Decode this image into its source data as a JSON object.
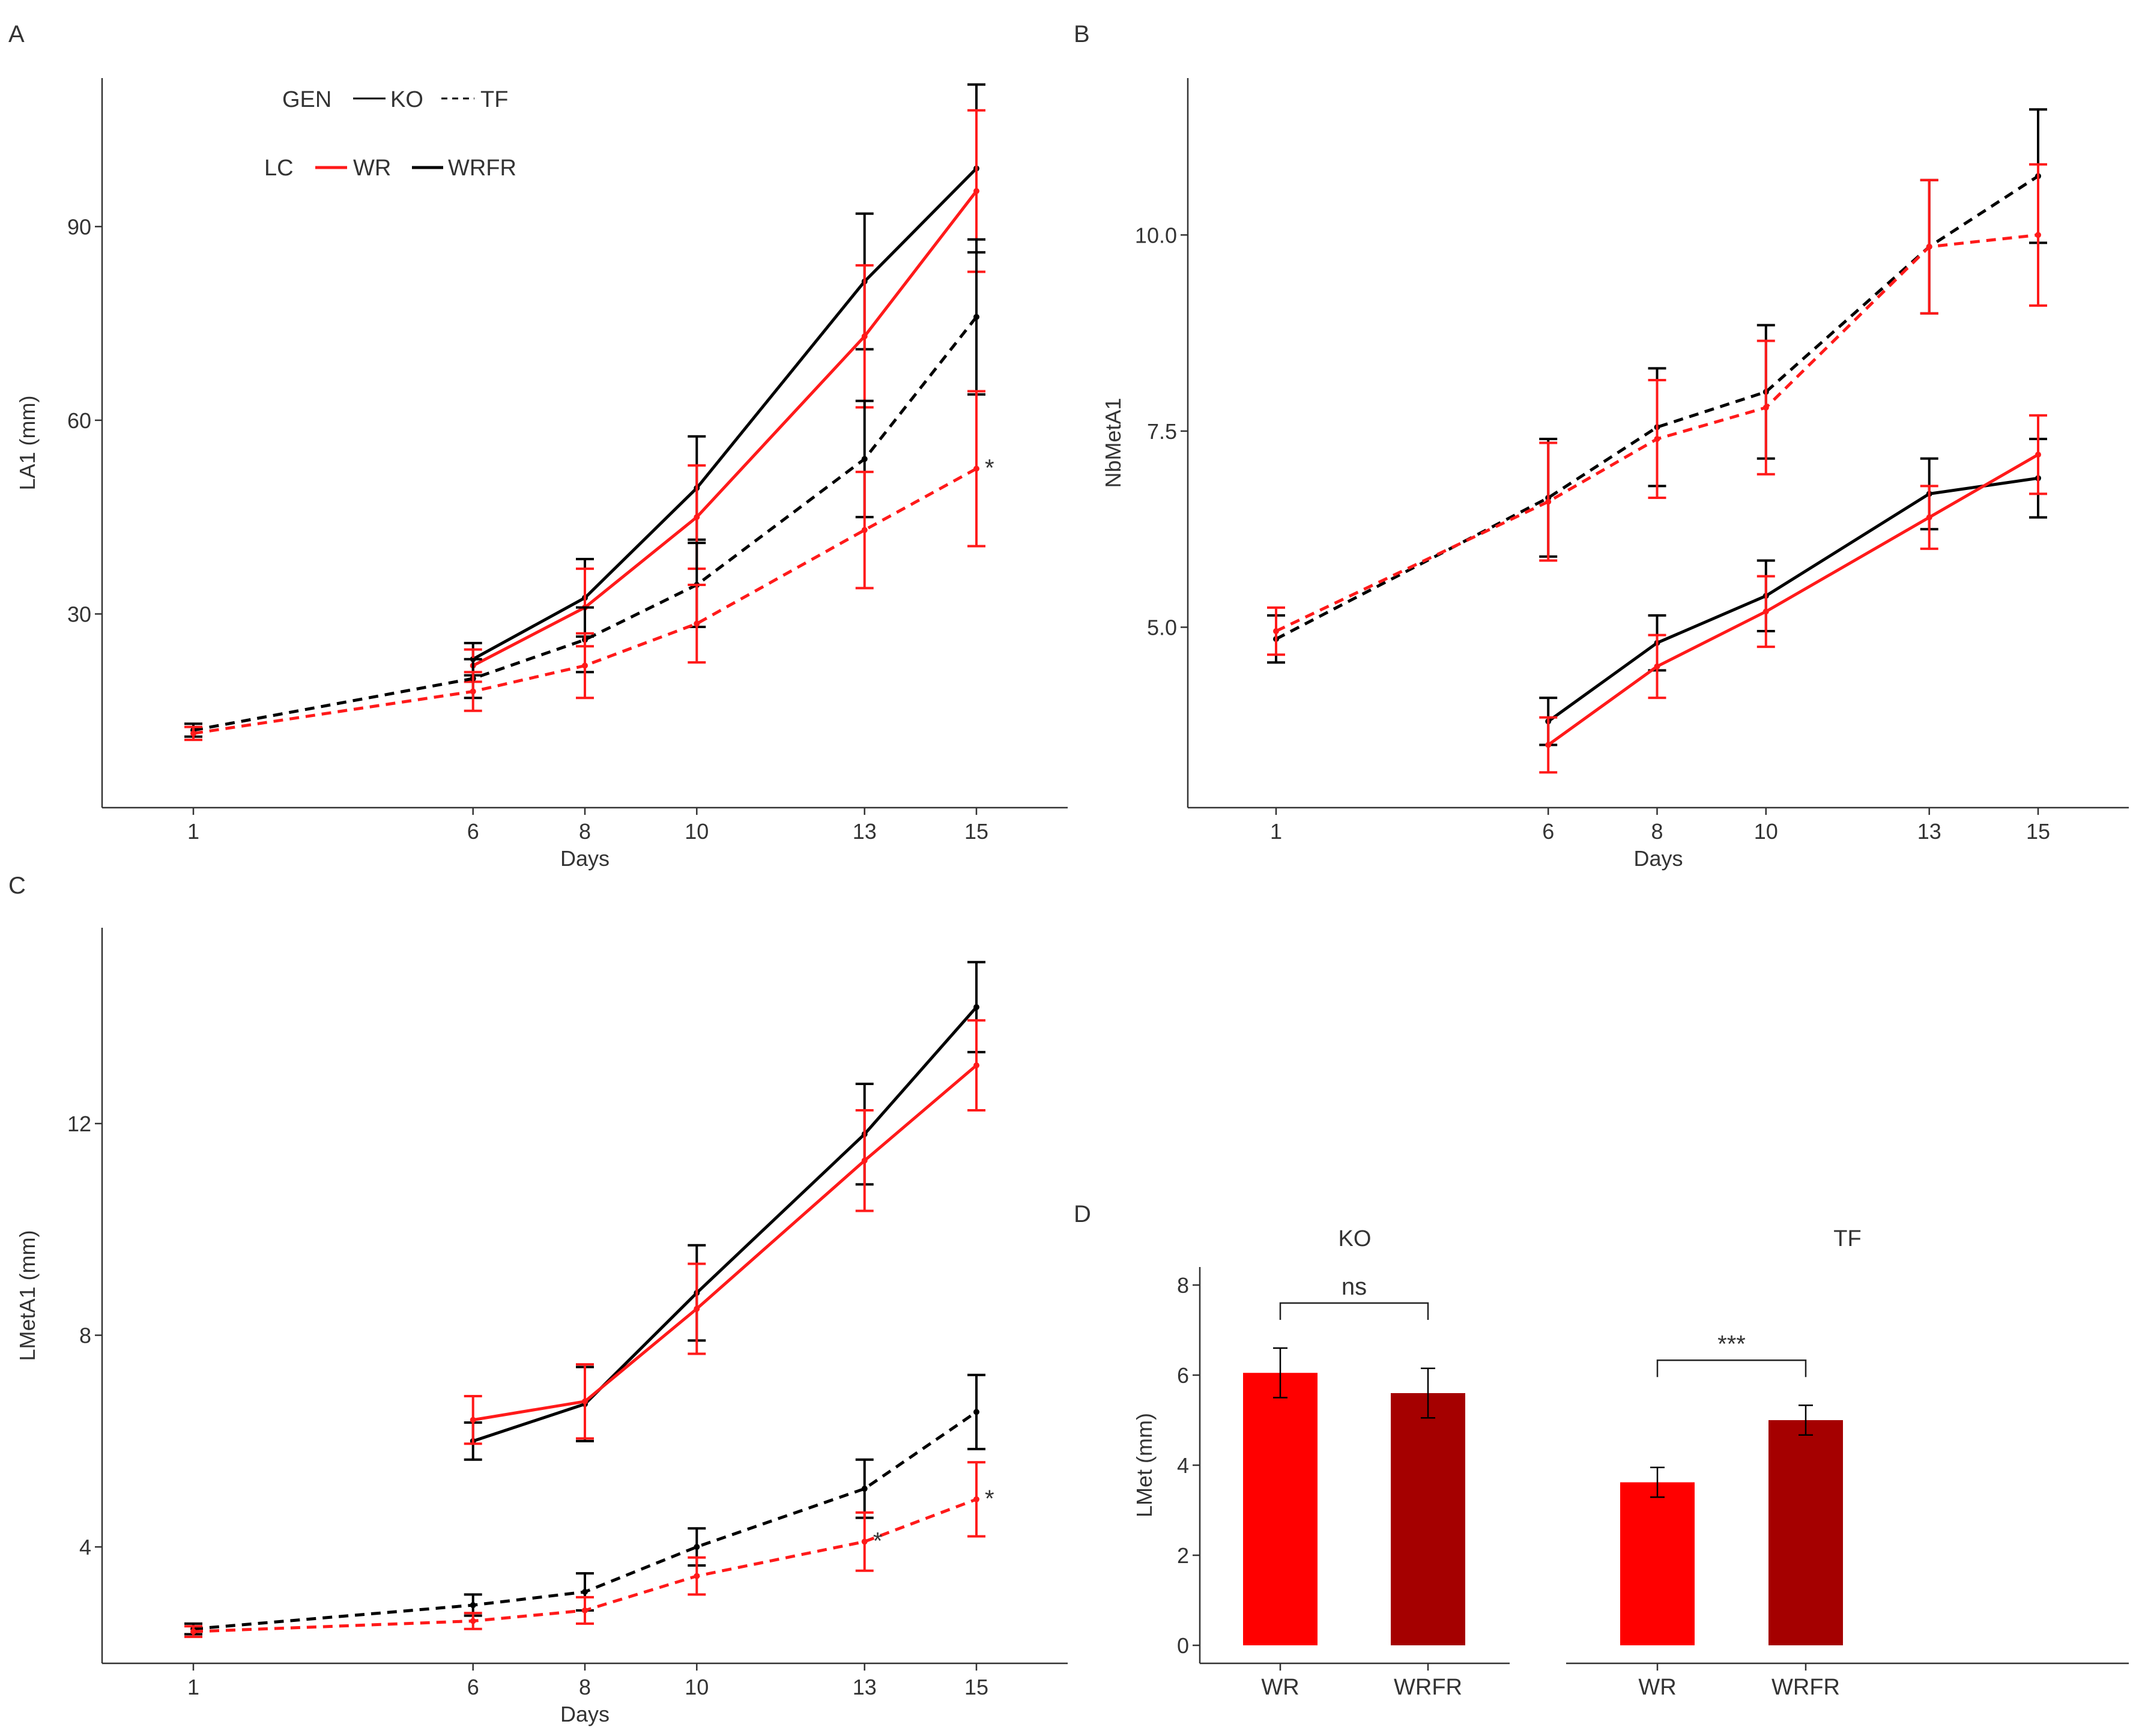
{
  "colors": {
    "wr": "#ff1a1a",
    "wrfr": "#000000",
    "bar_wr": "#ff0000",
    "bar_wrfr": "#a50000",
    "axis": "#333333"
  },
  "legend": {
    "gen_title": "GEN",
    "gen_items": [
      "KO",
      "TF"
    ],
    "lc_title": "LC",
    "lc_items": [
      "WR",
      "WRFR"
    ]
  },
  "chart_data": [
    {
      "panel": "A",
      "type": "line",
      "xlabel": "Days",
      "ylabel": "LA1 (mm)",
      "x": [
        1,
        6,
        8,
        10,
        13,
        15
      ],
      "xticks": [
        "1",
        "6",
        "8",
        "10",
        "13",
        "15"
      ],
      "ylim": [
        0,
        113
      ],
      "yticks": [
        30,
        60,
        90
      ],
      "series": [
        {
          "name": "KO-WRFR",
          "group": "WRFR",
          "gen": "KO",
          "x": [
            6,
            8,
            10,
            13,
            15
          ],
          "values": [
            23,
            32.5,
            49.5,
            81.5,
            99
          ],
          "err": [
            2.5,
            6,
            8,
            10.5,
            13
          ]
        },
        {
          "name": "KO-WR",
          "group": "WR",
          "gen": "KO",
          "x": [
            6,
            8,
            10,
            13,
            15
          ],
          "values": [
            22,
            31,
            45,
            73,
            95.5
          ],
          "err": [
            2.5,
            6,
            8,
            11,
            12.5
          ]
        },
        {
          "name": "TF-WRFR",
          "group": "WRFR",
          "gen": "TF",
          "x": [
            1,
            6,
            8,
            10,
            13,
            15
          ],
          "values": [
            12,
            20,
            26,
            34.5,
            54,
            76
          ],
          "err": [
            1,
            3,
            5,
            6.5,
            9,
            12
          ]
        },
        {
          "name": "TF-WR",
          "group": "WR",
          "gen": "TF",
          "x": [
            1,
            6,
            8,
            10,
            13,
            15
          ],
          "values": [
            11.5,
            18,
            22,
            28.5,
            43,
            52.5
          ],
          "err": [
            1,
            3,
            5,
            6,
            9,
            12
          ]
        }
      ],
      "annotations": [
        {
          "x": 15,
          "y": 52.5,
          "text": "*"
        }
      ]
    },
    {
      "panel": "B",
      "type": "line",
      "xlabel": "Days",
      "ylabel": "NbMetA1",
      "x": [
        1,
        6,
        8,
        10,
        13,
        15
      ],
      "xticks": [
        "1",
        "6",
        "8",
        "10",
        "13",
        "15"
      ],
      "ylim": [
        2.7,
        12.0
      ],
      "yticks": [
        5.0,
        7.5,
        10.0
      ],
      "series": [
        {
          "name": "TF-WRFR",
          "group": "WRFR",
          "gen": "TF",
          "x": [
            1,
            6,
            8,
            10,
            13,
            15
          ],
          "values": [
            4.85,
            6.65,
            7.55,
            8.0,
            9.85,
            10.75
          ],
          "err": [
            0.3,
            0.75,
            0.75,
            0.85,
            0.85,
            0.85
          ]
        },
        {
          "name": "TF-WR",
          "group": "WR",
          "gen": "TF",
          "x": [
            1,
            6,
            8,
            10,
            13,
            15
          ],
          "values": [
            4.95,
            6.6,
            7.4,
            7.8,
            9.85,
            10.0
          ],
          "err": [
            0.3,
            0.75,
            0.75,
            0.85,
            0.85,
            0.9
          ]
        },
        {
          "name": "KO-WRFR",
          "group": "WRFR",
          "gen": "KO",
          "x": [
            6,
            8,
            10,
            13,
            15
          ],
          "values": [
            3.8,
            4.8,
            5.4,
            6.7,
            6.9
          ],
          "err": [
            0.3,
            0.35,
            0.45,
            0.45,
            0.5
          ]
        },
        {
          "name": "KO-WR",
          "group": "WR",
          "gen": "KO",
          "x": [
            6,
            8,
            10,
            13,
            15
          ],
          "values": [
            3.5,
            4.5,
            5.2,
            6.4,
            7.2
          ],
          "err": [
            0.35,
            0.4,
            0.45,
            0.4,
            0.5
          ]
        }
      ]
    },
    {
      "panel": "C",
      "type": "line",
      "xlabel": "Days",
      "ylabel": "LMetA1 (mm)",
      "x": [
        1,
        6,
        8,
        10,
        13,
        15
      ],
      "xticks": [
        "1",
        "6",
        "8",
        "10",
        "13",
        "15"
      ],
      "ylim": [
        1.8,
        15.7
      ],
      "yticks": [
        4,
        8,
        12
      ],
      "series": [
        {
          "name": "KO-WRFR",
          "group": "WRFR",
          "gen": "KO",
          "x": [
            6,
            8,
            10,
            13,
            15
          ],
          "values": [
            6.0,
            6.7,
            8.8,
            11.8,
            14.2
          ],
          "err": [
            0.35,
            0.7,
            0.9,
            0.95,
            0.85
          ]
        },
        {
          "name": "KO-WR",
          "group": "WR",
          "gen": "KO",
          "x": [
            6,
            8,
            10,
            13,
            15
          ],
          "values": [
            6.4,
            6.75,
            8.5,
            11.3,
            13.1
          ],
          "err": [
            0.45,
            0.7,
            0.85,
            0.95,
            0.85
          ]
        },
        {
          "name": "TF-WRFR",
          "group": "WRFR",
          "gen": "TF",
          "x": [
            1,
            6,
            8,
            10,
            13,
            15
          ],
          "values": [
            2.45,
            2.9,
            3.15,
            4.0,
            5.1,
            6.55
          ],
          "err": [
            0.1,
            0.2,
            0.35,
            0.35,
            0.55,
            0.7
          ]
        },
        {
          "name": "TF-WR",
          "group": "WR",
          "gen": "TF",
          "x": [
            1,
            6,
            8,
            10,
            13,
            15
          ],
          "values": [
            2.4,
            2.6,
            2.8,
            3.45,
            4.1,
            4.9
          ],
          "err": [
            0.1,
            0.15,
            0.25,
            0.35,
            0.55,
            0.7
          ]
        }
      ],
      "annotations": [
        {
          "x": 13,
          "y": 4.1,
          "text": "*"
        },
        {
          "x": 15,
          "y": 4.9,
          "text": "*"
        }
      ]
    },
    {
      "panel": "D",
      "type": "bar",
      "ylabel": "LMet (mm)",
      "ylim": [
        -0.4,
        8.4
      ],
      "yticks": [
        0,
        2,
        4,
        6,
        8
      ],
      "facets": [
        {
          "title": "KO",
          "categories": [
            "WR",
            "WRFR"
          ],
          "values": [
            6.05,
            5.6
          ],
          "err": [
            0.55,
            0.55
          ],
          "sig": "ns"
        },
        {
          "title": "TF",
          "categories": [
            "WR",
            "WRFR"
          ],
          "values": [
            3.62,
            5.0
          ],
          "err": [
            0.33,
            0.33
          ],
          "sig": "***"
        }
      ]
    }
  ]
}
